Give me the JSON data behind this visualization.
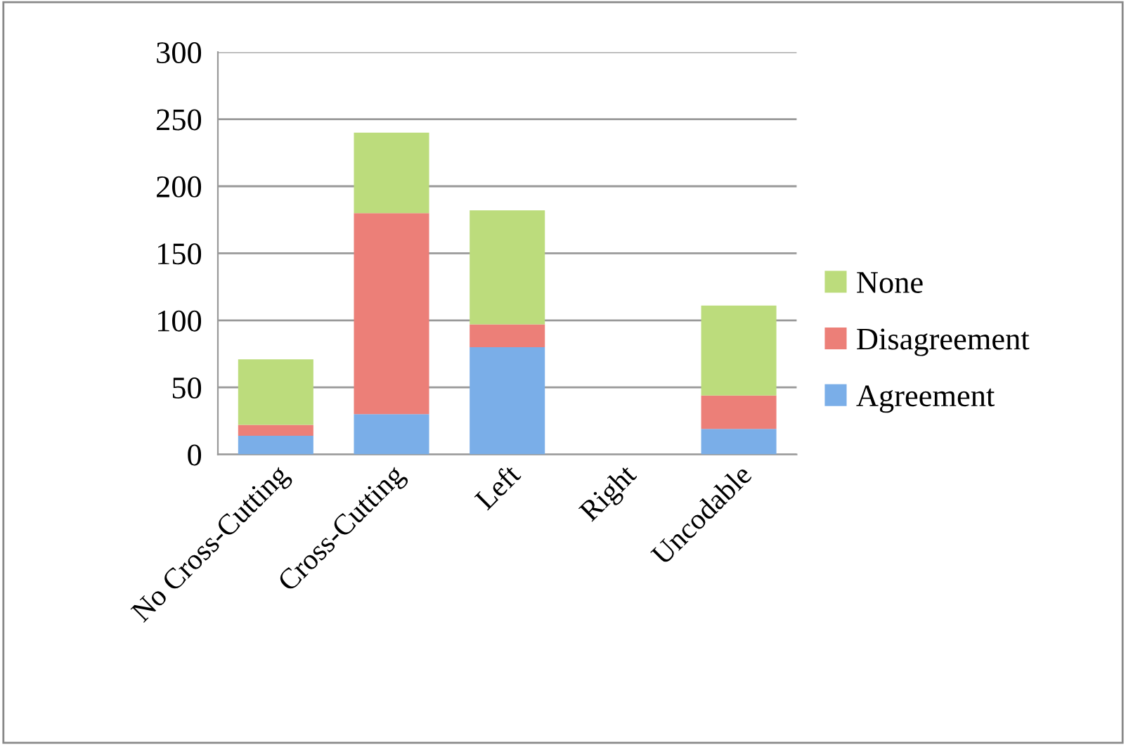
{
  "chart_data": {
    "type": "bar",
    "stacked": true,
    "categories": [
      "No Cross-Cutting",
      "Cross-Cutting",
      "Left",
      "Right",
      "Uncodable"
    ],
    "series": [
      {
        "name": "Agreement",
        "color": "#7aaee8",
        "values": [
          14,
          30,
          80,
          0,
          19
        ]
      },
      {
        "name": "Disagreement",
        "color": "#ec7f78",
        "values": [
          8,
          150,
          17,
          0,
          25
        ]
      },
      {
        "name": "None",
        "color": "#bcdc7c",
        "values": [
          49,
          60,
          85,
          0,
          67
        ]
      }
    ],
    "ylim": [
      0,
      300
    ],
    "yticks": [
      0,
      50,
      100,
      150,
      200,
      250,
      300
    ],
    "grid": "y",
    "legend": "right"
  }
}
